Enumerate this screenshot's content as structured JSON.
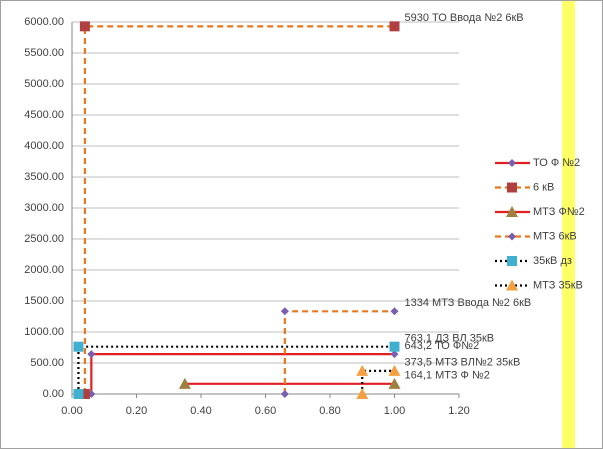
{
  "chart_data": {
    "type": "line",
    "xlim": [
      0,
      1.2
    ],
    "xticks": [
      {
        "value": 0,
        "label": "0.00"
      },
      {
        "value": 0.2,
        "label": "0.20"
      },
      {
        "value": 0.4,
        "label": "0.40"
      },
      {
        "value": 0.6,
        "label": "0.60"
      },
      {
        "value": 0.8,
        "label": "0.80"
      },
      {
        "value": 1,
        "label": "1.00"
      },
      {
        "value": 1.2,
        "label": "1.20"
      }
    ],
    "ylim": [
      0,
      6000
    ],
    "yticks": [
      {
        "value": 0,
        "label": "0.00"
      },
      {
        "value": 500,
        "label": "500.00"
      },
      {
        "value": 1000,
        "label": "1000.00"
      },
      {
        "value": 1500,
        "label": "1500.00"
      },
      {
        "value": 2000,
        "label": "2000.00"
      },
      {
        "value": 2500,
        "label": "2500.00"
      },
      {
        "value": 3000,
        "label": "3000.00"
      },
      {
        "value": 3500,
        "label": "3500.00"
      },
      {
        "value": 4000,
        "label": "4000.00"
      },
      {
        "value": 4500,
        "label": "4500.00"
      },
      {
        "value": 5000,
        "label": "5000.00"
      },
      {
        "value": 5500,
        "label": "5500.00"
      },
      {
        "value": 6000,
        "label": "6000.00"
      }
    ],
    "grid": true,
    "legend": "right",
    "series": [
      {
        "name": "ТО Ф №2",
        "color": "#e02020",
        "style": "solid",
        "marker": "diamond",
        "marker_color": "#7a5fb0",
        "x": [
          0.06,
          0.06,
          1.0
        ],
        "values": [
          0,
          643.2,
          643.2
        ],
        "value_labels": [
          null,
          null,
          "643,2 ТО Ф№2"
        ]
      },
      {
        "name": "6 кВ",
        "color": "#e8771e",
        "style": "dashed",
        "marker": "square",
        "marker_color": "#b04040",
        "x": [
          0.04,
          0.04,
          1.0
        ],
        "values": [
          0,
          5930,
          5930
        ],
        "value_labels": [
          null,
          null,
          "5930 ТО Ввода №2 6кВ"
        ]
      },
      {
        "name": "МТЗ Ф№2",
        "color": "#e02020",
        "style": "solid",
        "marker": "triangle",
        "marker_color": "#a08040",
        "x": [
          0.35,
          1.0
        ],
        "values": [
          164.1,
          164.1
        ],
        "value_labels": [
          null,
          "164,1 МТЗ Ф №2"
        ]
      },
      {
        "name": "МТЗ 6кВ",
        "color": "#e8771e",
        "style": "dashed",
        "marker": "diamond",
        "marker_color": "#7a5fb0",
        "x": [
          0.66,
          0.66,
          1.0
        ],
        "values": [
          0,
          1334,
          1334
        ],
        "value_labels": [
          null,
          null,
          "1334 МТЗ Ввода №2 6кВ"
        ]
      },
      {
        "name": "35кВ дз",
        "color": "#000000",
        "style": "dotted",
        "marker": "square",
        "marker_color": "#3fb0d0",
        "x": [
          0.02,
          0.02,
          1.0
        ],
        "values": [
          0,
          763.1,
          763.1
        ],
        "value_labels": [
          null,
          null,
          "763,1 ДЗ ВЛ 35кВ"
        ]
      },
      {
        "name": "МТЗ 35кВ",
        "color": "#000000",
        "style": "dotted",
        "marker": "triangle",
        "marker_color": "#f4a040",
        "x": [
          0.9,
          0.9,
          1.0
        ],
        "values": [
          0,
          373.5,
          373.5
        ],
        "value_labels": [
          null,
          null,
          "373,5 МТЗ ВЛ№2 35кВ"
        ]
      }
    ]
  }
}
